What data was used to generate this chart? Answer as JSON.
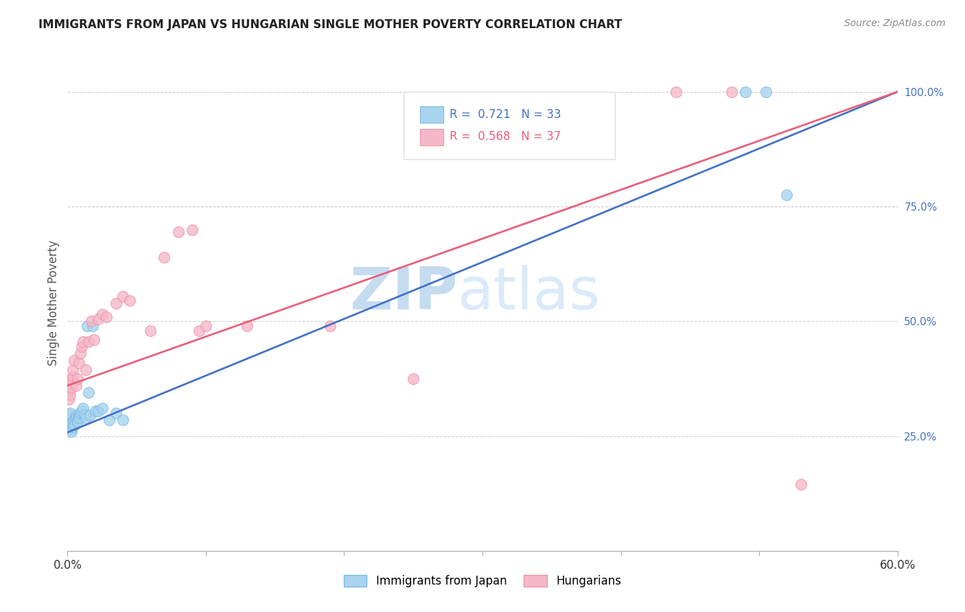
{
  "title": "IMMIGRANTS FROM JAPAN VS HUNGARIAN SINGLE MOTHER POVERTY CORRELATION CHART",
  "source": "Source: ZipAtlas.com",
  "ylabel": "Single Mother Poverty",
  "legend_label1": "Immigrants from Japan",
  "legend_label2": "Hungarians",
  "R1": "0.721",
  "N1": "33",
  "R2": "0.568",
  "N2": "37",
  "color_blue": "#A8D4F0",
  "color_pink": "#F5B8C8",
  "edge_blue": "#7AB8E0",
  "edge_pink": "#F090A8",
  "line_color_blue": "#4472C4",
  "line_color_pink": "#E8607A",
  "watermark_zip": "ZIP",
  "watermark_atlas": "atlas",
  "xlim": [
    0.0,
    0.6
  ],
  "ylim": [
    0.0,
    1.08
  ],
  "right_yticks": [
    0.25,
    0.5,
    0.75,
    1.0
  ],
  "right_yticklabels": [
    "25.0%",
    "50.0%",
    "75.0%",
    "100.0%"
  ],
  "japan_x": [
    0.001,
    0.002,
    0.002,
    0.003,
    0.003,
    0.004,
    0.004,
    0.005,
    0.005,
    0.006,
    0.006,
    0.007,
    0.007,
    0.008,
    0.008,
    0.009,
    0.01,
    0.011,
    0.012,
    0.013,
    0.014,
    0.015,
    0.016,
    0.018,
    0.02,
    0.022,
    0.025,
    0.03,
    0.035,
    0.04,
    0.49,
    0.505,
    0.52
  ],
  "japan_y": [
    0.295,
    0.3,
    0.275,
    0.265,
    0.26,
    0.28,
    0.27,
    0.285,
    0.275,
    0.295,
    0.29,
    0.285,
    0.28,
    0.295,
    0.29,
    0.3,
    0.305,
    0.31,
    0.295,
    0.29,
    0.49,
    0.345,
    0.295,
    0.49,
    0.305,
    0.305,
    0.31,
    0.285,
    0.3,
    0.285,
    1.0,
    1.0,
    0.775
  ],
  "hungary_x": [
    0.001,
    0.001,
    0.002,
    0.002,
    0.003,
    0.003,
    0.004,
    0.004,
    0.005,
    0.006,
    0.007,
    0.008,
    0.009,
    0.01,
    0.011,
    0.013,
    0.015,
    0.017,
    0.019,
    0.022,
    0.025,
    0.028,
    0.035,
    0.04,
    0.045,
    0.06,
    0.07,
    0.08,
    0.09,
    0.095,
    0.1,
    0.13,
    0.19,
    0.25,
    0.44,
    0.48,
    0.53
  ],
  "hungary_y": [
    0.33,
    0.35,
    0.34,
    0.37,
    0.355,
    0.375,
    0.38,
    0.395,
    0.415,
    0.36,
    0.375,
    0.41,
    0.43,
    0.445,
    0.455,
    0.395,
    0.455,
    0.5,
    0.46,
    0.505,
    0.515,
    0.51,
    0.54,
    0.555,
    0.545,
    0.48,
    0.64,
    0.695,
    0.7,
    0.48,
    0.49,
    0.49,
    0.49,
    0.375,
    1.0,
    1.0,
    0.145
  ],
  "japan_line_x0": 0.0,
  "japan_line_y0": 0.258,
  "japan_line_x1": 0.6,
  "japan_line_y1": 1.0,
  "hungary_line_x0": 0.0,
  "hungary_line_y0": 0.36,
  "hungary_line_x1": 0.6,
  "hungary_line_y1": 1.0
}
